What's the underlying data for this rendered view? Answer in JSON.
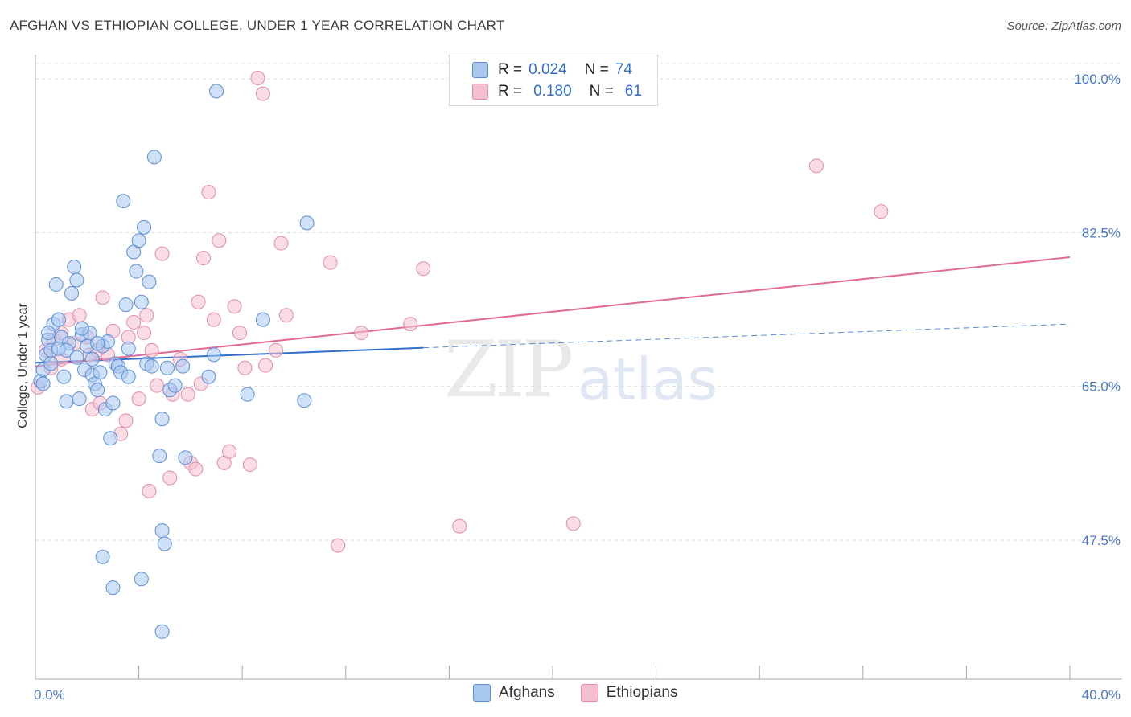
{
  "title": "AFGHAN VS ETHIOPIAN COLLEGE, UNDER 1 YEAR CORRELATION CHART",
  "source": "Source: ZipAtlas.com",
  "watermark": {
    "zip": "ZIP",
    "atlas": "atlas"
  },
  "colors": {
    "afghan_fill": "#a9c8f0",
    "afghan_stroke": "#5b8fd6",
    "afghan_line": "#2e6fcc",
    "ethiopian_fill": "#f6bfd0",
    "ethiopian_stroke": "#e58aa9",
    "ethiopian_line": "#e06a95",
    "tick_text": "#4a78c8",
    "grid": "#dddddd"
  },
  "legend": {
    "rows": [
      {
        "r_label": "R =",
        "r_value": "0.024",
        "n_label": "N =",
        "n_value": "74"
      },
      {
        "r_label": "R =",
        "r_value": "0.180",
        "n_label": "N =",
        "n_value": "61"
      }
    ]
  },
  "bottom_legend": [
    "Afghans",
    "Ethiopians"
  ],
  "chart_data": {
    "type": "scatter",
    "title": "AFGHAN VS ETHIOPIAN COLLEGE, UNDER 1 YEAR CORRELATION CHART",
    "xlabel": "",
    "ylabel": "College, Under 1 year",
    "xlim": [
      0,
      40
    ],
    "ylim": [
      32,
      102
    ],
    "x_ticks": [
      0,
      4,
      8,
      12,
      16,
      20,
      24,
      28,
      32,
      36,
      40
    ],
    "x_tick_labels": {
      "0": "0.0%",
      "40": "40.0%"
    },
    "y_ticks": [
      47.5,
      65.0,
      82.5,
      100.0
    ],
    "y_tick_labels": [
      "47.5%",
      "65.0%",
      "82.5%",
      "100.0%"
    ],
    "series": [
      {
        "name": "Afghans",
        "R": 0.024,
        "N": 74,
        "trend": {
          "x0": 0,
          "y0": 67.6,
          "x1": 15,
          "y1": 69.3,
          "dash_x1": 40,
          "dash_y1": 72.0
        },
        "points": [
          [
            0.2,
            65.5
          ],
          [
            0.3,
            66.8
          ],
          [
            0.4,
            68.5
          ],
          [
            0.5,
            70.2
          ],
          [
            0.6,
            69.0
          ],
          [
            0.7,
            72.0
          ],
          [
            0.8,
            76.5
          ],
          [
            0.9,
            72.5
          ],
          [
            1.0,
            70.5
          ],
          [
            1.1,
            66.0
          ],
          [
            1.2,
            63.2
          ],
          [
            1.3,
            69.8
          ],
          [
            1.4,
            75.5
          ],
          [
            1.5,
            78.5
          ],
          [
            1.6,
            77.0
          ],
          [
            1.7,
            63.5
          ],
          [
            1.8,
            70.8
          ],
          [
            1.9,
            66.8
          ],
          [
            2.0,
            69.5
          ],
          [
            2.1,
            71.0
          ],
          [
            2.2,
            66.2
          ],
          [
            2.3,
            65.2
          ],
          [
            2.4,
            64.5
          ],
          [
            2.5,
            66.5
          ],
          [
            2.6,
            69.5
          ],
          [
            2.7,
            62.3
          ],
          [
            2.8,
            70.0
          ],
          [
            2.9,
            59.0
          ],
          [
            3.0,
            63.0
          ],
          [
            3.1,
            67.5
          ],
          [
            3.2,
            67.2
          ],
          [
            3.3,
            66.5
          ],
          [
            3.4,
            86.0
          ],
          [
            3.5,
            74.2
          ],
          [
            3.6,
            69.2
          ],
          [
            3.8,
            80.2
          ],
          [
            3.9,
            78.0
          ],
          [
            4.0,
            81.5
          ],
          [
            4.1,
            74.5
          ],
          [
            4.2,
            83.0
          ],
          [
            4.3,
            67.5
          ],
          [
            4.4,
            76.8
          ],
          [
            4.5,
            67.2
          ],
          [
            4.6,
            91.0
          ],
          [
            4.8,
            57.0
          ],
          [
            4.9,
            48.5
          ],
          [
            5.0,
            47.0
          ],
          [
            5.1,
            67.0
          ],
          [
            5.2,
            64.5
          ],
          [
            5.4,
            65.0
          ],
          [
            4.1,
            43.0
          ],
          [
            3.0,
            42.0
          ],
          [
            2.6,
            45.5
          ],
          [
            4.9,
            61.2
          ],
          [
            5.7,
            67.2
          ],
          [
            5.8,
            56.8
          ],
          [
            4.9,
            37.0
          ],
          [
            6.7,
            66.0
          ],
          [
            6.9,
            68.5
          ],
          [
            7.0,
            98.5
          ],
          [
            8.2,
            64.0
          ],
          [
            8.8,
            72.5
          ],
          [
            10.5,
            83.5
          ],
          [
            10.4,
            63.3
          ],
          [
            0.3,
            65.2
          ],
          [
            0.5,
            71.0
          ],
          [
            0.9,
            69.2
          ],
          [
            1.2,
            69.0
          ],
          [
            1.8,
            71.5
          ],
          [
            2.4,
            69.8
          ],
          [
            1.6,
            68.2
          ],
          [
            0.6,
            67.5
          ],
          [
            2.2,
            68.0
          ],
          [
            3.6,
            66.0
          ]
        ]
      },
      {
        "name": "Ethiopians",
        "R": 0.18,
        "N": 61,
        "trend": {
          "x0": 0,
          "y0": 67.2,
          "x1": 40,
          "y1": 79.6
        },
        "points": [
          [
            0.1,
            64.8
          ],
          [
            0.4,
            69.0
          ],
          [
            0.7,
            70.2
          ],
          [
            1.0,
            71.0
          ],
          [
            1.3,
            72.5
          ],
          [
            1.5,
            69.8
          ],
          [
            1.7,
            73.0
          ],
          [
            2.0,
            70.5
          ],
          [
            2.1,
            68.5
          ],
          [
            2.2,
            62.3
          ],
          [
            2.4,
            69.0
          ],
          [
            2.6,
            75.0
          ],
          [
            2.8,
            68.5
          ],
          [
            3.0,
            71.2
          ],
          [
            3.3,
            59.5
          ],
          [
            3.5,
            61.0
          ],
          [
            3.6,
            70.5
          ],
          [
            3.8,
            72.2
          ],
          [
            4.0,
            63.5
          ],
          [
            4.2,
            71.0
          ],
          [
            4.3,
            73.0
          ],
          [
            4.4,
            53.0
          ],
          [
            4.5,
            69.0
          ],
          [
            4.7,
            65.0
          ],
          [
            4.9,
            80.0
          ],
          [
            5.2,
            54.5
          ],
          [
            5.3,
            64.0
          ],
          [
            5.6,
            68.0
          ],
          [
            5.9,
            64.0
          ],
          [
            6.0,
            56.2
          ],
          [
            6.2,
            55.5
          ],
          [
            6.3,
            74.5
          ],
          [
            6.4,
            65.2
          ],
          [
            6.5,
            79.5
          ],
          [
            6.7,
            87.0
          ],
          [
            6.9,
            72.5
          ],
          [
            7.1,
            81.5
          ],
          [
            7.3,
            56.2
          ],
          [
            7.5,
            57.5
          ],
          [
            7.7,
            74.0
          ],
          [
            7.9,
            71.0
          ],
          [
            8.1,
            67.0
          ],
          [
            8.3,
            56.0
          ],
          [
            8.6,
            100.0
          ],
          [
            8.8,
            98.2
          ],
          [
            8.9,
            67.3
          ],
          [
            9.3,
            69.0
          ],
          [
            9.5,
            81.2
          ],
          [
            9.7,
            73.0
          ],
          [
            11.4,
            79.0
          ],
          [
            11.7,
            46.8
          ],
          [
            12.6,
            71.0
          ],
          [
            14.5,
            72.0
          ],
          [
            15.0,
            78.3
          ],
          [
            16.4,
            49.0
          ],
          [
            20.8,
            49.3
          ],
          [
            30.2,
            90.0
          ],
          [
            32.7,
            84.8
          ],
          [
            1.0,
            68.0
          ],
          [
            2.5,
            63.0
          ],
          [
            0.6,
            67.0
          ]
        ]
      }
    ]
  }
}
